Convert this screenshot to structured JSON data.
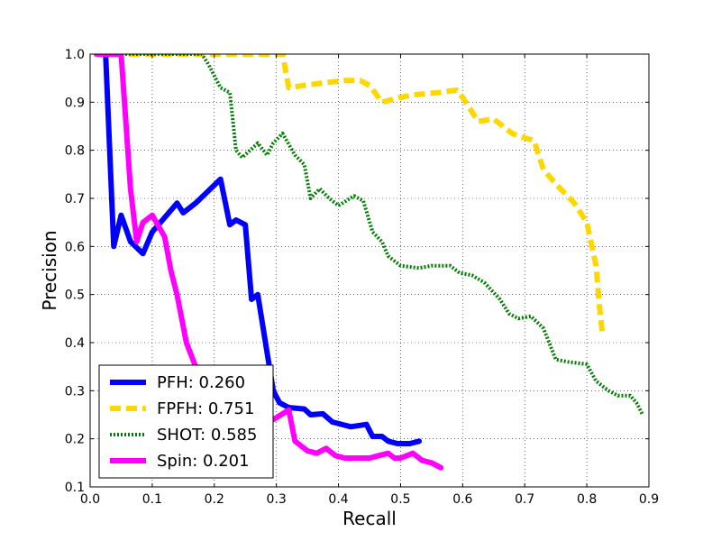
{
  "chart_data": {
    "type": "line",
    "title": "",
    "xlabel": "Recall",
    "ylabel": "Precision",
    "xlim": [
      0.0,
      0.9
    ],
    "ylim": [
      0.1,
      1.0
    ],
    "xticks": [
      "0.0",
      "0.1",
      "0.2",
      "0.3",
      "0.4",
      "0.5",
      "0.6",
      "0.7",
      "0.8",
      "0.9"
    ],
    "yticks": [
      "0.1",
      "0.2",
      "0.3",
      "0.4",
      "0.5",
      "0.6",
      "0.7",
      "0.8",
      "0.9",
      "1.0"
    ],
    "grid": true,
    "legend_position": "lower-left",
    "series": [
      {
        "name": "PFH: 0.260",
        "color": "#0000ff",
        "style": "solid",
        "points": [
          [
            0.025,
            1.0
          ],
          [
            0.038,
            0.6
          ],
          [
            0.05,
            0.665
          ],
          [
            0.065,
            0.61
          ],
          [
            0.085,
            0.585
          ],
          [
            0.1,
            0.63
          ],
          [
            0.12,
            0.66
          ],
          [
            0.14,
            0.69
          ],
          [
            0.15,
            0.67
          ],
          [
            0.17,
            0.69
          ],
          [
            0.19,
            0.715
          ],
          [
            0.21,
            0.74
          ],
          [
            0.225,
            0.645
          ],
          [
            0.235,
            0.655
          ],
          [
            0.25,
            0.645
          ],
          [
            0.26,
            0.49
          ],
          [
            0.27,
            0.5
          ],
          [
            0.285,
            0.38
          ],
          [
            0.295,
            0.3
          ],
          [
            0.305,
            0.275
          ],
          [
            0.32,
            0.265
          ],
          [
            0.345,
            0.262
          ],
          [
            0.355,
            0.25
          ],
          [
            0.375,
            0.252
          ],
          [
            0.39,
            0.235
          ],
          [
            0.42,
            0.225
          ],
          [
            0.445,
            0.23
          ],
          [
            0.455,
            0.205
          ],
          [
            0.47,
            0.205
          ],
          [
            0.48,
            0.195
          ],
          [
            0.495,
            0.19
          ],
          [
            0.515,
            0.19
          ],
          [
            0.53,
            0.195
          ]
        ]
      },
      {
        "name": "FPFH: 0.751",
        "color": "#ffd700",
        "style": "dashed",
        "points": [
          [
            0.01,
            1.0
          ],
          [
            0.31,
            1.0
          ],
          [
            0.32,
            0.93
          ],
          [
            0.345,
            0.935
          ],
          [
            0.375,
            0.94
          ],
          [
            0.41,
            0.945
          ],
          [
            0.435,
            0.945
          ],
          [
            0.45,
            0.935
          ],
          [
            0.47,
            0.9
          ],
          [
            0.5,
            0.91
          ],
          [
            0.52,
            0.915
          ],
          [
            0.56,
            0.92
          ],
          [
            0.59,
            0.925
          ],
          [
            0.6,
            0.91
          ],
          [
            0.625,
            0.86
          ],
          [
            0.65,
            0.865
          ],
          [
            0.68,
            0.835
          ],
          [
            0.69,
            0.83
          ],
          [
            0.715,
            0.82
          ],
          [
            0.73,
            0.76
          ],
          [
            0.75,
            0.73
          ],
          [
            0.78,
            0.69
          ],
          [
            0.8,
            0.65
          ],
          [
            0.815,
            0.56
          ],
          [
            0.82,
            0.48
          ],
          [
            0.825,
            0.42
          ]
        ]
      },
      {
        "name": "SHOT: 0.585",
        "color": "#008000",
        "style": "dotted",
        "points": [
          [
            0.01,
            1.0
          ],
          [
            0.18,
            1.0
          ],
          [
            0.19,
            0.98
          ],
          [
            0.21,
            0.93
          ],
          [
            0.225,
            0.92
          ],
          [
            0.235,
            0.8
          ],
          [
            0.245,
            0.785
          ],
          [
            0.27,
            0.815
          ],
          [
            0.285,
            0.79
          ],
          [
            0.295,
            0.815
          ],
          [
            0.31,
            0.835
          ],
          [
            0.33,
            0.79
          ],
          [
            0.345,
            0.77
          ],
          [
            0.355,
            0.7
          ],
          [
            0.37,
            0.72
          ],
          [
            0.385,
            0.7
          ],
          [
            0.4,
            0.685
          ],
          [
            0.425,
            0.705
          ],
          [
            0.44,
            0.695
          ],
          [
            0.455,
            0.63
          ],
          [
            0.47,
            0.61
          ],
          [
            0.48,
            0.58
          ],
          [
            0.5,
            0.56
          ],
          [
            0.53,
            0.555
          ],
          [
            0.55,
            0.56
          ],
          [
            0.58,
            0.56
          ],
          [
            0.595,
            0.545
          ],
          [
            0.615,
            0.54
          ],
          [
            0.635,
            0.525
          ],
          [
            0.66,
            0.49
          ],
          [
            0.675,
            0.46
          ],
          [
            0.69,
            0.45
          ],
          [
            0.71,
            0.455
          ],
          [
            0.73,
            0.43
          ],
          [
            0.75,
            0.365
          ],
          [
            0.77,
            0.36
          ],
          [
            0.8,
            0.355
          ],
          [
            0.815,
            0.32
          ],
          [
            0.835,
            0.3
          ],
          [
            0.85,
            0.29
          ],
          [
            0.87,
            0.29
          ],
          [
            0.88,
            0.275
          ],
          [
            0.89,
            0.25
          ]
        ]
      },
      {
        "name": "Spin: 0.201",
        "color": "#ff00ff",
        "style": "solid",
        "points": [
          [
            0.01,
            1.0
          ],
          [
            0.05,
            1.0
          ],
          [
            0.065,
            0.72
          ],
          [
            0.075,
            0.61
          ],
          [
            0.085,
            0.65
          ],
          [
            0.1,
            0.665
          ],
          [
            0.12,
            0.62
          ],
          [
            0.13,
            0.55
          ],
          [
            0.14,
            0.5
          ],
          [
            0.155,
            0.4
          ],
          [
            0.17,
            0.35
          ],
          [
            0.185,
            0.345
          ],
          [
            0.2,
            0.325
          ],
          [
            0.215,
            0.3
          ],
          [
            0.23,
            0.28
          ],
          [
            0.245,
            0.26
          ],
          [
            0.265,
            0.25
          ],
          [
            0.28,
            0.24
          ],
          [
            0.295,
            0.24
          ],
          [
            0.32,
            0.26
          ],
          [
            0.33,
            0.195
          ],
          [
            0.35,
            0.175
          ],
          [
            0.365,
            0.17
          ],
          [
            0.38,
            0.18
          ],
          [
            0.395,
            0.165
          ],
          [
            0.41,
            0.16
          ],
          [
            0.43,
            0.16
          ],
          [
            0.45,
            0.16
          ],
          [
            0.465,
            0.165
          ],
          [
            0.48,
            0.17
          ],
          [
            0.49,
            0.16
          ],
          [
            0.5,
            0.16
          ],
          [
            0.52,
            0.17
          ],
          [
            0.535,
            0.155
          ],
          [
            0.55,
            0.15
          ],
          [
            0.565,
            0.14
          ]
        ]
      }
    ]
  }
}
